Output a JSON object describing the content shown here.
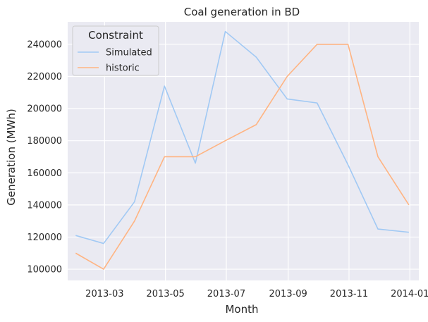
{
  "chart_data": {
    "type": "line",
    "title": "Coal generation in BD",
    "xlabel": "Month",
    "ylabel": "Generation (MWh)",
    "x_type": "date",
    "xlim": [
      "2013-01-23",
      "2014-01-10"
    ],
    "ylim": [
      93000,
      254000
    ],
    "x_ticks": [
      {
        "date": "2013-03-01",
        "label": "2013-03"
      },
      {
        "date": "2013-05-01",
        "label": "2013-05"
      },
      {
        "date": "2013-07-01",
        "label": "2013-07"
      },
      {
        "date": "2013-09-01",
        "label": "2013-09"
      },
      {
        "date": "2013-11-01",
        "label": "2013-11"
      },
      {
        "date": "2014-01-01",
        "label": "2014-01"
      }
    ],
    "y_ticks": [
      {
        "value": 100000,
        "label": "100000"
      },
      {
        "value": 120000,
        "label": "120000"
      },
      {
        "value": 140000,
        "label": "140000"
      },
      {
        "value": 160000,
        "label": "160000"
      },
      {
        "value": 180000,
        "label": "180000"
      },
      {
        "value": 200000,
        "label": "200000"
      },
      {
        "value": 220000,
        "label": "220000"
      },
      {
        "value": 240000,
        "label": "240000"
      }
    ],
    "grid": true,
    "legend": {
      "title": "Constraint",
      "placement": "top-left"
    },
    "x": [
      "2013-01-31",
      "2013-02-28",
      "2013-03-31",
      "2013-04-30",
      "2013-05-31",
      "2013-06-30",
      "2013-07-31",
      "2013-08-31",
      "2013-09-30",
      "2013-10-31",
      "2013-11-30",
      "2013-12-31"
    ],
    "series": [
      {
        "name": "Simulated",
        "color": "#a1c9f4",
        "values": [
          121000,
          116000,
          142000,
          214000,
          166000,
          248000,
          232000,
          206000,
          203500,
          165000,
          125000,
          123000
        ]
      },
      {
        "name": "historic",
        "color": "#ffb482",
        "values": [
          110000,
          100000,
          130000,
          170000,
          170000,
          180000,
          190000,
          220000,
          240000,
          240000,
          170000,
          140000
        ]
      }
    ],
    "colors": {
      "background": "#eaeaf2",
      "grid": "#ffffff",
      "text": "#262626",
      "legend_bg": "#eaeaf2",
      "legend_border": "#cccccc"
    }
  }
}
